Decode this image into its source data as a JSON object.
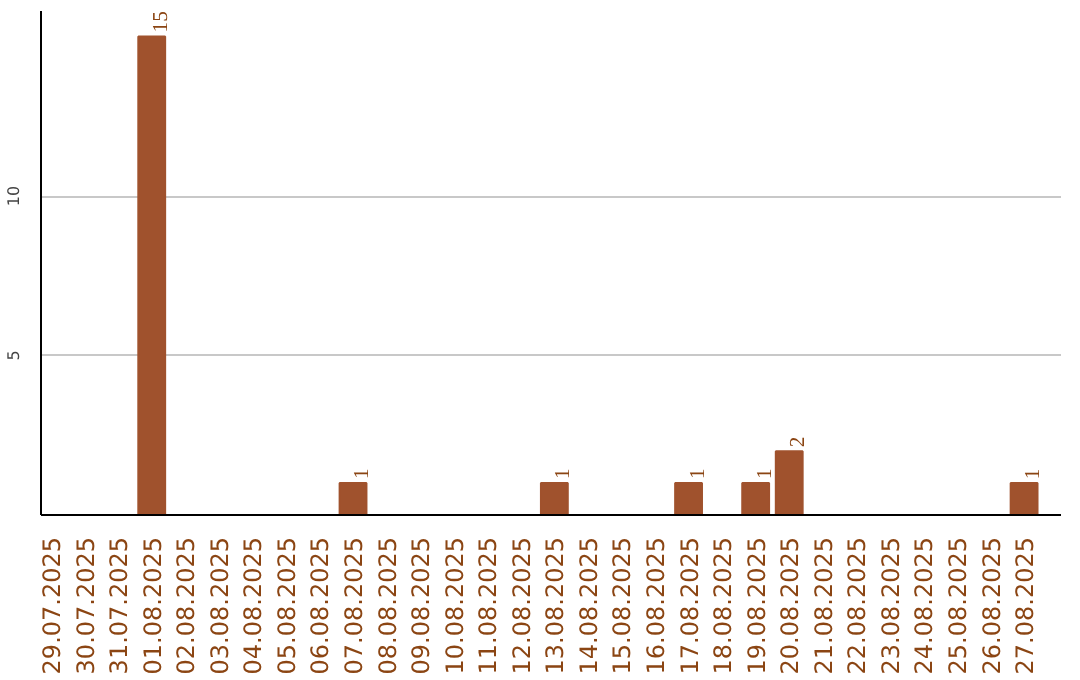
{
  "chart_data": {
    "type": "bar",
    "categories": [
      "29.07.2025",
      "30.07.2025",
      "31.07.2025",
      "01.08.2025",
      "02.08.2025",
      "03.08.2025",
      "04.08.2025",
      "05.08.2025",
      "06.08.2025",
      "07.08.2025",
      "08.08.2025",
      "09.08.2025",
      "10.08.2025",
      "11.08.2025",
      "12.08.2025",
      "13.08.2025",
      "14.08.2025",
      "15.08.2025",
      "16.08.2025",
      "17.08.2025",
      "18.08.2025",
      "19.08.2025",
      "20.08.2025",
      "21.08.2025",
      "22.08.2025",
      "23.08.2025",
      "24.08.2025",
      "25.08.2025",
      "26.08.2025",
      "27.08.2025"
    ],
    "values": [
      0,
      0,
      0,
      15,
      0,
      0,
      0,
      0,
      0,
      1,
      0,
      0,
      0,
      0,
      0,
      1,
      0,
      0,
      0,
      1,
      0,
      1,
      2,
      0,
      0,
      0,
      0,
      0,
      0,
      1
    ],
    "value_labels": [
      null,
      null,
      null,
      "15",
      null,
      null,
      null,
      null,
      null,
      "1",
      null,
      null,
      null,
      null,
      null,
      "1",
      null,
      null,
      null,
      "1",
      null,
      "1",
      "2",
      null,
      null,
      null,
      null,
      null,
      null,
      "1"
    ],
    "color": "#a0522d",
    "ylim": [
      0,
      15.8
    ],
    "yticks": [
      5,
      10
    ],
    "grid": "y"
  }
}
